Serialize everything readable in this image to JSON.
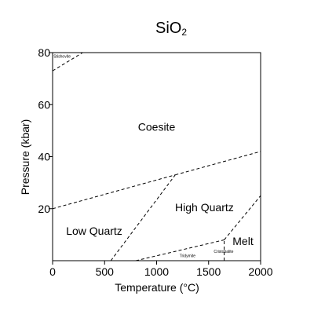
{
  "chart_data": {
    "type": "line",
    "title": "SiO",
    "title_subscript": "2",
    "xlabel": "Temperature (°C)",
    "ylabel": "Pressure (kbar)",
    "xlim": [
      0,
      2000
    ],
    "ylim": [
      0,
      80
    ],
    "x_ticks": [
      "0",
      "500",
      "1000",
      "1500",
      "2000"
    ],
    "y_ticks": [
      "20",
      "40",
      "60",
      "80"
    ],
    "x_tick_values": [
      0,
      500,
      1000,
      1500,
      2000
    ],
    "y_tick_values": [
      20,
      40,
      60,
      80
    ],
    "grid": false,
    "line_style": "dashed",
    "boundaries": [
      {
        "id": "stishovite-coesite",
        "x": [
          0,
          290
        ],
        "y": [
          73,
          80
        ]
      },
      {
        "id": "coesite-low-quartz",
        "x": [
          0,
          1180
        ],
        "y": [
          20,
          33
        ]
      },
      {
        "id": "coesite-high-quartz",
        "x": [
          1180,
          2000
        ],
        "y": [
          33,
          42
        ]
      },
      {
        "id": "low-high-quartz",
        "x": [
          560,
          1180
        ],
        "y": [
          0,
          33
        ]
      },
      {
        "id": "high-quartz-tridymite",
        "x": [
          800,
          1650
        ],
        "y": [
          0,
          8
        ]
      },
      {
        "id": "high-quartz-melt",
        "x": [
          1650,
          2000
        ],
        "y": [
          8,
          25
        ]
      },
      {
        "id": "cristobalite-melt",
        "x": [
          1650,
          1650
        ],
        "y": [
          0,
          8
        ]
      }
    ],
    "regions": [
      {
        "label": "Stishovite",
        "x": 10,
        "y": 78,
        "size": "tiny"
      },
      {
        "label": "Coesite",
        "x": 1000,
        "y": 50,
        "size": "normal"
      },
      {
        "label": "High Quartz",
        "x": 1460,
        "y": 19,
        "size": "normal"
      },
      {
        "label": "Low Quartz",
        "x": 400,
        "y": 10,
        "size": "normal"
      },
      {
        "label": "Melt",
        "x": 1830,
        "y": 6,
        "size": "normal"
      },
      {
        "label": "Cristobalite",
        "x": 1550,
        "y": 3,
        "size": "tiny"
      },
      {
        "label": "Tridymite",
        "x": 1220,
        "y": 1.3,
        "size": "tiny"
      }
    ]
  }
}
